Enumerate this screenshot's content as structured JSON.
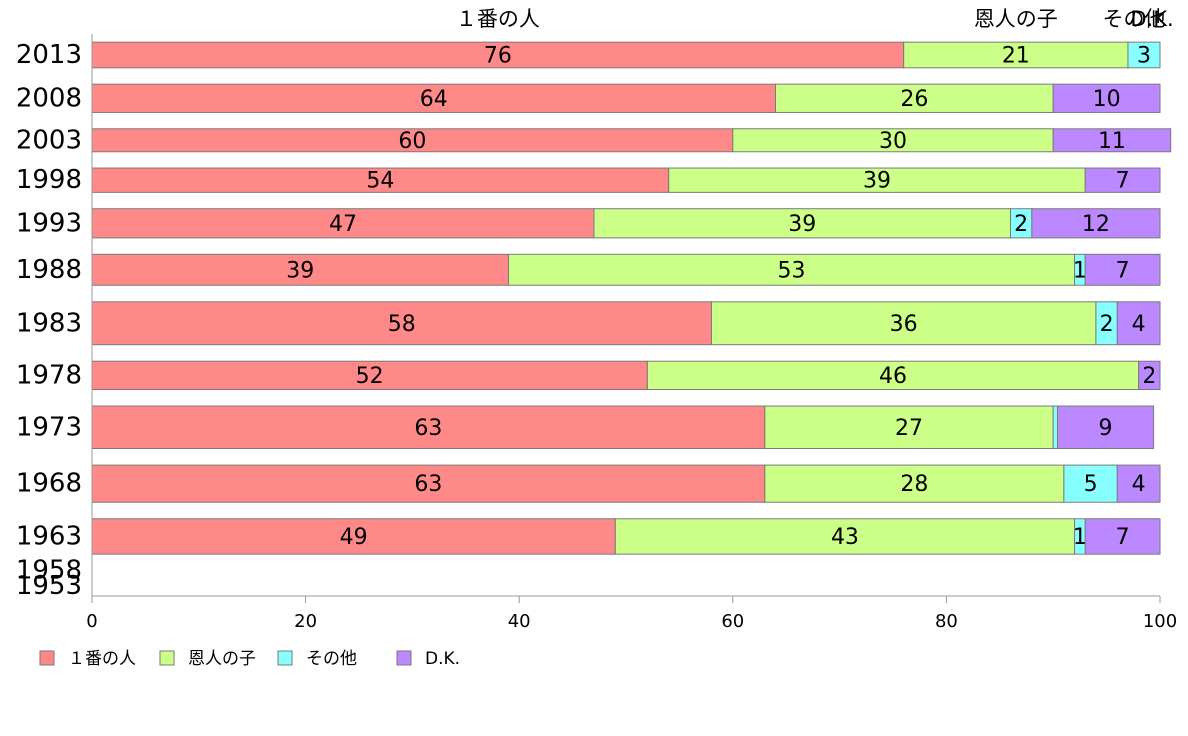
{
  "chart_data": {
    "type": "bar",
    "orientation": "horizontal",
    "stacked": true,
    "categories": [
      "2013",
      "2008",
      "2003",
      "1998",
      "1993",
      "1988",
      "1983",
      "1978",
      "1973",
      "1968",
      "1963",
      "1958",
      "1953"
    ],
    "series": [
      {
        "name": "１番の人",
        "color": "#ff8888",
        "values": [
          76,
          64,
          60,
          54,
          47,
          39,
          58,
          52,
          63,
          63,
          49,
          null,
          null
        ]
      },
      {
        "name": "恩人の子",
        "color": "#ccff88",
        "values": [
          21,
          26,
          30,
          39,
          39,
          53,
          36,
          46,
          27,
          28,
          43,
          null,
          null
        ]
      },
      {
        "name": "その他",
        "color": "#88ffff",
        "values": [
          3,
          0,
          0,
          0,
          2,
          1,
          2,
          0,
          0.4,
          5,
          1,
          null,
          null
        ]
      },
      {
        "name": "D.K.",
        "color": "#bb88ff",
        "values": [
          0,
          10,
          11,
          7,
          12,
          7,
          4,
          2,
          9,
          4,
          7,
          null,
          null
        ]
      }
    ],
    "bar_weights": [
      0.58,
      0.64,
      0.52,
      0.55,
      0.66,
      0.7,
      0.97,
      0.64,
      0.96,
      0.84,
      0.8,
      0,
      0
    ],
    "labels": [
      [
        "76",
        "21",
        "3",
        ""
      ],
      [
        "64",
        "26",
        "",
        "10"
      ],
      [
        "60",
        "30",
        "",
        "11"
      ],
      [
        "54",
        "39",
        "",
        "7"
      ],
      [
        "47",
        "39",
        "2",
        "12"
      ],
      [
        "39",
        "53",
        "1",
        "7"
      ],
      [
        "58",
        "36",
        "2",
        "4"
      ],
      [
        "52",
        "46",
        "",
        "2"
      ],
      [
        "63",
        "27",
        "",
        "9"
      ],
      [
        "63",
        "28",
        "5",
        "4"
      ],
      [
        "49",
        "43",
        "1",
        "7"
      ],
      [
        "",
        "",
        "",
        ""
      ],
      [
        "",
        "",
        "",
        ""
      ]
    ],
    "top_labels": [
      "１番の人",
      "恩人の子",
      "その他",
      "D.K."
    ],
    "xlim": [
      0,
      100
    ],
    "xticks": [
      "0",
      "20",
      "40",
      "60",
      "80",
      "100"
    ],
    "legend_position": "bottom-left",
    "grid": false
  }
}
